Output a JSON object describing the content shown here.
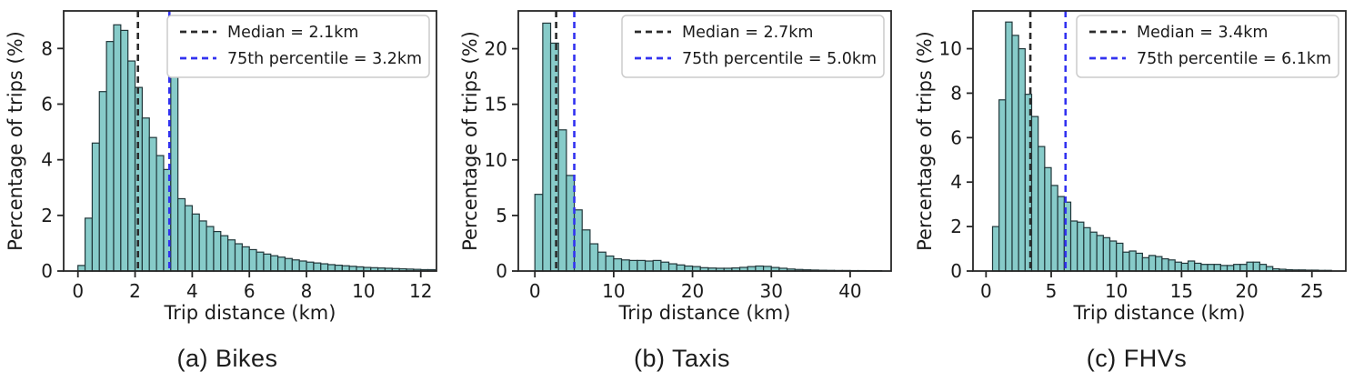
{
  "figure": {
    "description": "Trip distance distributions by mode",
    "background_color": "#ffffff"
  },
  "style": {
    "bar_fill_color": "#87cbc9",
    "bar_edge_color": "#21373a",
    "spine_color": "#262626",
    "text_color": "#1a1a1a",
    "legend_border_color": "#cccccc",
    "median_line_color": "#2b2b2b",
    "percentile_line_color": "#3232f0"
  },
  "chart_data": [
    {
      "type": "bar",
      "caption": "(a) Bikes",
      "xlabel": "Trip distance (km)",
      "ylabel": "Percentage of trips (%)",
      "legend_position": "upper right",
      "grid": false,
      "bin_start_km": 0,
      "bin_width_km": 0.25,
      "xlim": [
        -0.5,
        12.55
      ],
      "ylim": [
        0,
        9.35
      ],
      "xticks": [
        0,
        2,
        4,
        6,
        8,
        10,
        12
      ],
      "yticks": [
        0,
        2,
        4,
        6,
        8
      ],
      "values_percent": [
        0.2,
        1.9,
        4.6,
        6.45,
        8.25,
        8.85,
        8.65,
        7.55,
        6.6,
        5.5,
        4.8,
        4.15,
        3.65,
        7.5,
        2.6,
        2.35,
        2.05,
        1.8,
        1.6,
        1.42,
        1.27,
        1.12,
        0.98,
        0.87,
        0.77,
        0.68,
        0.61,
        0.55,
        0.5,
        0.45,
        0.4,
        0.36,
        0.32,
        0.29,
        0.26,
        0.23,
        0.21,
        0.19,
        0.17,
        0.15,
        0.13,
        0.12,
        0.11,
        0.1,
        0.09,
        0.08,
        0.07,
        0.06,
        0.05,
        0.05
      ],
      "annotations": [
        {
          "label": "Median = 2.1km",
          "km": 2.1,
          "color": "#2b2b2b",
          "style": "dashed"
        },
        {
          "label": "75th percentile = 3.2km",
          "km": 3.2,
          "color": "#3232f0",
          "style": "dashed"
        }
      ]
    },
    {
      "type": "bar",
      "caption": "(b) Taxis",
      "xlabel": "Trip distance (km)",
      "ylabel": "Percentage of trips (%)",
      "legend_position": "upper right",
      "grid": false,
      "bin_start_km": 0,
      "bin_width_km": 1.0,
      "xlim": [
        -2.1,
        45.2
      ],
      "ylim": [
        0,
        23.4
      ],
      "xticks": [
        0,
        10,
        20,
        30,
        40
      ],
      "yticks": [
        0,
        5,
        10,
        15,
        20
      ],
      "values_percent": [
        6.9,
        22.3,
        20.5,
        12.7,
        8.6,
        5.5,
        3.7,
        2.45,
        1.7,
        1.35,
        1.1,
        1.0,
        0.95,
        0.95,
        0.9,
        0.95,
        0.8,
        0.65,
        0.55,
        0.45,
        0.4,
        0.3,
        0.27,
        0.25,
        0.25,
        0.28,
        0.33,
        0.4,
        0.45,
        0.42,
        0.32,
        0.25,
        0.18,
        0.14,
        0.11,
        0.09,
        0.07,
        0.06,
        0.05,
        0.05,
        0.04,
        0.04,
        0.03,
        0.03
      ],
      "annotations": [
        {
          "label": "Median = 2.7km",
          "km": 2.7,
          "color": "#2b2b2b",
          "style": "dashed"
        },
        {
          "label": "75th percentile = 5.0km",
          "km": 5.0,
          "color": "#3232f0",
          "style": "dashed"
        }
      ]
    },
    {
      "type": "bar",
      "caption": "(c) FHVs",
      "xlabel": "Trip distance (km)",
      "ylabel": "Percentage of trips (%)",
      "legend_position": "upper right",
      "grid": false,
      "bin_start_km": 0,
      "bin_width_km": 0.5,
      "xlim": [
        -1.0,
        27.6
      ],
      "ylim": [
        0,
        11.7
      ],
      "xticks": [
        0,
        5,
        10,
        15,
        20,
        25
      ],
      "yticks": [
        0,
        2,
        4,
        6,
        8,
        10
      ],
      "values_percent": [
        0.0,
        2.0,
        7.7,
        11.2,
        10.6,
        10.0,
        7.95,
        6.95,
        5.6,
        4.65,
        3.85,
        3.35,
        3.1,
        2.25,
        2.2,
        1.95,
        1.75,
        1.6,
        1.5,
        1.35,
        1.25,
        0.85,
        0.9,
        0.8,
        0.6,
        0.7,
        0.65,
        0.55,
        0.5,
        0.4,
        0.35,
        0.45,
        0.35,
        0.3,
        0.3,
        0.3,
        0.25,
        0.25,
        0.3,
        0.3,
        0.4,
        0.4,
        0.3,
        0.2,
        0.1,
        0.08,
        0.06,
        0.05,
        0.05,
        0.04,
        0.04,
        0.03,
        0.03
      ],
      "annotations": [
        {
          "label": "Median = 3.4km",
          "km": 3.4,
          "color": "#2b2b2b",
          "style": "dashed"
        },
        {
          "label": "75th percentile = 6.1km",
          "km": 6.1,
          "color": "#3232f0",
          "style": "dashed"
        }
      ]
    }
  ]
}
